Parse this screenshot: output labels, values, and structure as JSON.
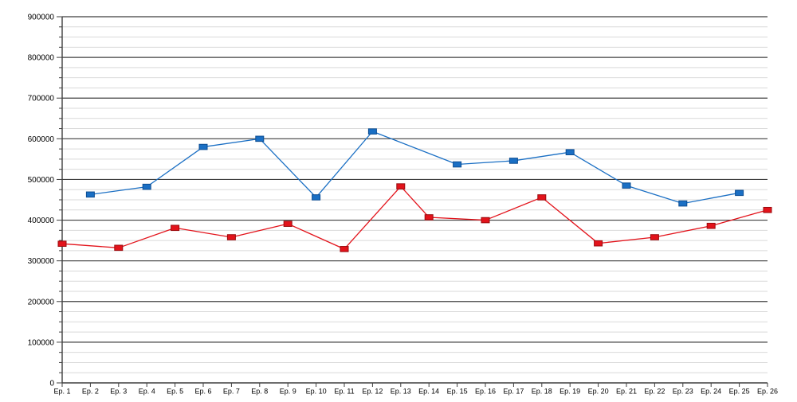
{
  "page": {
    "background": "#ffffff",
    "title": ""
  },
  "chart_data": {
    "type": "line",
    "title": "",
    "xlabel": "",
    "ylabel": "",
    "legend": {
      "visible": false
    },
    "grid": {
      "major": true,
      "minor": true,
      "major_color": "#3f3f3f",
      "minor_color": "#d9d9d9",
      "axis_color": "#3f3f3f"
    },
    "x_axis": {
      "categories": [
        "Ep. 1",
        "Ep. 2",
        "Ep. 3",
        "Ep. 4",
        "Ep. 5",
        "Ep. 6",
        "Ep. 7",
        "Ep. 8",
        "Ep. 9",
        "Ep. 10",
        "Ep. 11",
        "Ep. 12",
        "Ep. 13",
        "Ep. 14",
        "Ep. 15",
        "Ep. 16",
        "Ep. 17",
        "Ep. 18",
        "Ep. 19",
        "Ep. 20",
        "Ep. 21",
        "Ep. 22",
        "Ep. 23",
        "Ep. 24",
        "Ep. 25",
        "Ep. 26"
      ]
    },
    "y_axis": {
      "min": 0,
      "max": 900000,
      "major_step": 100000,
      "minor_step": 25000,
      "tick_labels": [
        "0",
        "100000",
        "200000",
        "300000",
        "400000",
        "500000",
        "600000",
        "700000",
        "800000",
        "900000"
      ]
    },
    "series": [
      {
        "name": "blue-series",
        "color": "#1a6fc4",
        "marker_border": "#0d4d92",
        "marker": "square",
        "points": [
          {
            "episode": 2,
            "value": 463000
          },
          {
            "episode": 4,
            "value": 482000
          },
          {
            "episode": 6,
            "value": 580000
          },
          {
            "episode": 8,
            "value": 600000
          },
          {
            "episode": 10,
            "value": 456000
          },
          {
            "episode": 12,
            "value": 618000
          },
          {
            "episode": 15,
            "value": 537000
          },
          {
            "episode": 17,
            "value": 546000
          },
          {
            "episode": 19,
            "value": 567000
          },
          {
            "episode": 21,
            "value": 485000
          },
          {
            "episode": 23,
            "value": 441000
          },
          {
            "episode": 25,
            "value": 467000
          }
        ]
      },
      {
        "name": "red-series",
        "color": "#e3131b",
        "marker_border": "#9a0b0e",
        "marker": "square",
        "points": [
          {
            "episode": 1,
            "value": 342000
          },
          {
            "episode": 3,
            "value": 332000
          },
          {
            "episode": 5,
            "value": 381000
          },
          {
            "episode": 7,
            "value": 358000
          },
          {
            "episode": 9,
            "value": 391000
          },
          {
            "episode": 11,
            "value": 329000
          },
          {
            "episode": 13,
            "value": 483000
          },
          {
            "episode": 14,
            "value": 407000
          },
          {
            "episode": 16,
            "value": 400000
          },
          {
            "episode": 18,
            "value": 456000
          },
          {
            "episode": 20,
            "value": 343000
          },
          {
            "episode": 22,
            "value": 358000
          },
          {
            "episode": 24,
            "value": 386000
          },
          {
            "episode": 26,
            "value": 425000
          }
        ]
      }
    ]
  }
}
